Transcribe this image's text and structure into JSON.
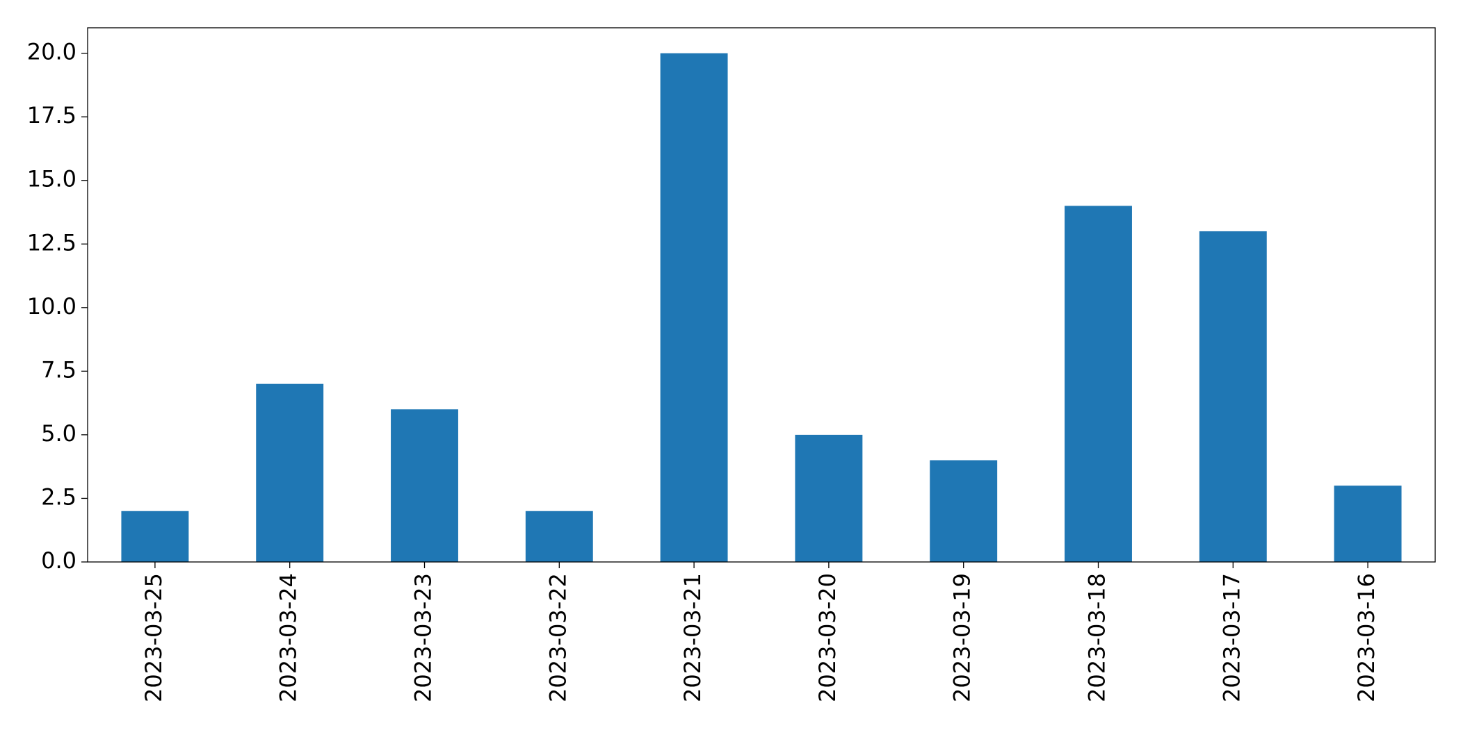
{
  "chart_data": {
    "type": "bar",
    "categories": [
      "2023-03-25",
      "2023-03-24",
      "2023-03-23",
      "2023-03-22",
      "2023-03-21",
      "2023-03-20",
      "2023-03-19",
      "2023-03-18",
      "2023-03-17",
      "2023-03-16"
    ],
    "values": [
      2,
      7,
      6,
      2,
      20,
      5,
      4,
      14,
      13,
      3
    ],
    "color": "#1f77b4",
    "ylim": [
      0,
      21
    ],
    "yticks": [
      {
        "value": 0,
        "label": "0.0"
      },
      2.5,
      {
        "value": 5,
        "label": "5.0"
      },
      7.5,
      {
        "value": 10,
        "label": "10.0"
      },
      12.5,
      {
        "value": 15,
        "label": "15.0"
      },
      17.5,
      {
        "value": 20,
        "label": "20.0"
      }
    ],
    "grid": false
  }
}
